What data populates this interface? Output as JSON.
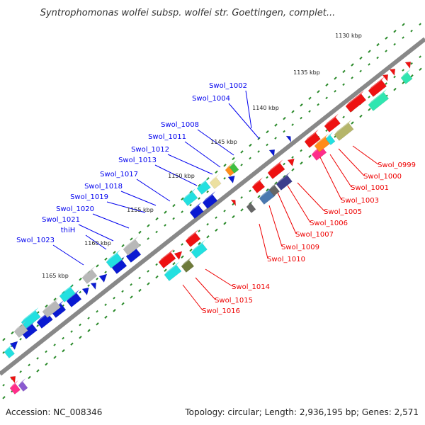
{
  "title": "Syntrophomonas wolfei subsp. wolfei str. Goettingen, complet...",
  "footer": {
    "accession": "Accession: NC_008346",
    "summary": "Topology: circular; Length: 2,936,195 bp; Genes: 2,571"
  },
  "colors": {
    "forward_label": "#0000ee",
    "reverse_label": "#ee0000",
    "backbone": "#888888",
    "ticks": "#2a8a2a"
  },
  "scale_labels": [
    "1130 kbp",
    "1135 kbp",
    "1140 kbp",
    "1145 kbp",
    "1150 kbp",
    "1155 kbp",
    "1160 kbp",
    "1165 kbp"
  ],
  "forward_labels": [
    "Swol_1002",
    "Swol_1004",
    "Swol_1008",
    "Swol_1011",
    "Swol_1012",
    "Swol_1013",
    "Swol_1017",
    "Swol_1018",
    "Swol_1019",
    "Swol_1020",
    "Swol_1021",
    "thiH",
    "Swol_1023"
  ],
  "reverse_labels": [
    "Swol_0999",
    "Swol_1000",
    "Swol_1001",
    "Swol_1003",
    "Swol_1005",
    "Swol_1006",
    "Swol_1007",
    "Swol_1009",
    "Swol_1010",
    "Swol_1014",
    "Swol_1015",
    "Swol_1016"
  ]
}
